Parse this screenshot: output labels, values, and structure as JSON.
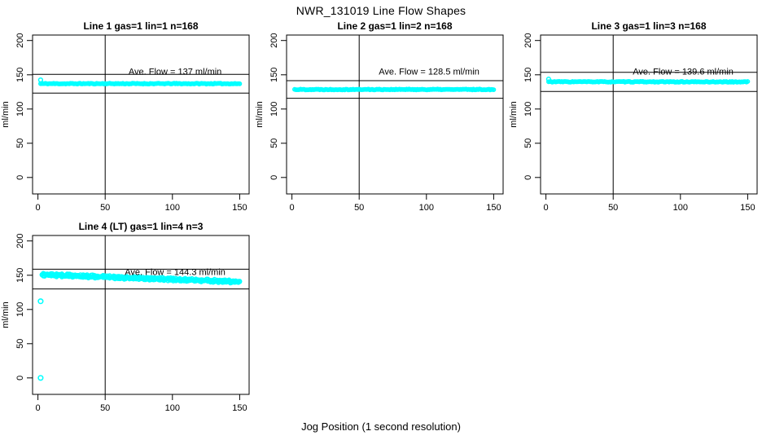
{
  "figure": {
    "title": "NWR_131019  Line Flow Shapes",
    "xlabel": "Jog Position (1 second resolution)",
    "ylabel": "ml/min",
    "background": "#ffffff",
    "point_color": "#00ffff",
    "axis_color": "#000000"
  },
  "axes": {
    "x_ticks": [
      0,
      50,
      100,
      150
    ],
    "y_ticks": [
      0,
      50,
      100,
      150,
      200
    ],
    "xlim": [
      -4,
      157
    ],
    "ylim": [
      -24,
      208
    ]
  },
  "chart_data": [
    {
      "type": "scatter",
      "title": "Line 1 gas=1 lin=1 n=168",
      "gas": 1,
      "lin": 1,
      "n": 168,
      "ave_flow": 137,
      "annotation": "Ave. Flow =  137  ml/min",
      "annotation_pos": {
        "x": 102,
        "y": 155
      },
      "hlines": [
        150.7,
        123.3
      ],
      "vline": 50,
      "band": {
        "x_start": 2,
        "x_end": 150,
        "y_start": 137,
        "y_end": 137,
        "jitter": 0.6,
        "points": 168,
        "runs": 1,
        "start_bump": 142.5
      },
      "outliers": [],
      "seed": 11
    },
    {
      "type": "scatter",
      "title": "Line 2 gas=1 lin=2 n=168",
      "gas": 1,
      "lin": 2,
      "n": 168,
      "ave_flow": 128.5,
      "annotation": "Ave. Flow =  128.5  ml/min",
      "annotation_pos": {
        "x": 102,
        "y": 155
      },
      "hlines": [
        141.4,
        115.7
      ],
      "vline": 50,
      "band": {
        "x_start": 2,
        "x_end": 150,
        "y_start": 128.5,
        "y_end": 128.5,
        "jitter": 0.6,
        "points": 168,
        "runs": 1
      },
      "outliers": [],
      "seed": 22
    },
    {
      "type": "scatter",
      "title": "Line 3 gas=1 lin=3 n=168",
      "gas": 1,
      "lin": 3,
      "n": 168,
      "ave_flow": 139.6,
      "annotation": "Ave. Flow =  139.6  ml/min",
      "annotation_pos": {
        "x": 102,
        "y": 155
      },
      "hlines": [
        153.6,
        125.6
      ],
      "vline": 50,
      "band": {
        "x_start": 2,
        "x_end": 150,
        "y_start": 139.8,
        "y_end": 139.6,
        "jitter": 0.6,
        "points": 168,
        "runs": 1,
        "start_bump": 143.5
      },
      "outliers": [],
      "seed": 33
    },
    {
      "type": "scatter",
      "title": "Line 4 (LT) gas=1 lin=4 n=3",
      "gas": 1,
      "lin": 4,
      "n": 3,
      "ave_flow": 144.3,
      "annotation": "Ave. Flow =  144.3  ml/min",
      "annotation_pos": {
        "x": 102,
        "y": 155
      },
      "hlines": [
        158.7,
        129.9
      ],
      "vline": 50,
      "band": {
        "x_start": 3,
        "x_end": 150,
        "y_start": 150.8,
        "y_end": 140.3,
        "jitter": 1.6,
        "points": 150,
        "runs": 3
      },
      "outliers": [
        [
          2,
          112
        ],
        [
          2,
          0
        ]
      ],
      "seed": 44
    }
  ]
}
